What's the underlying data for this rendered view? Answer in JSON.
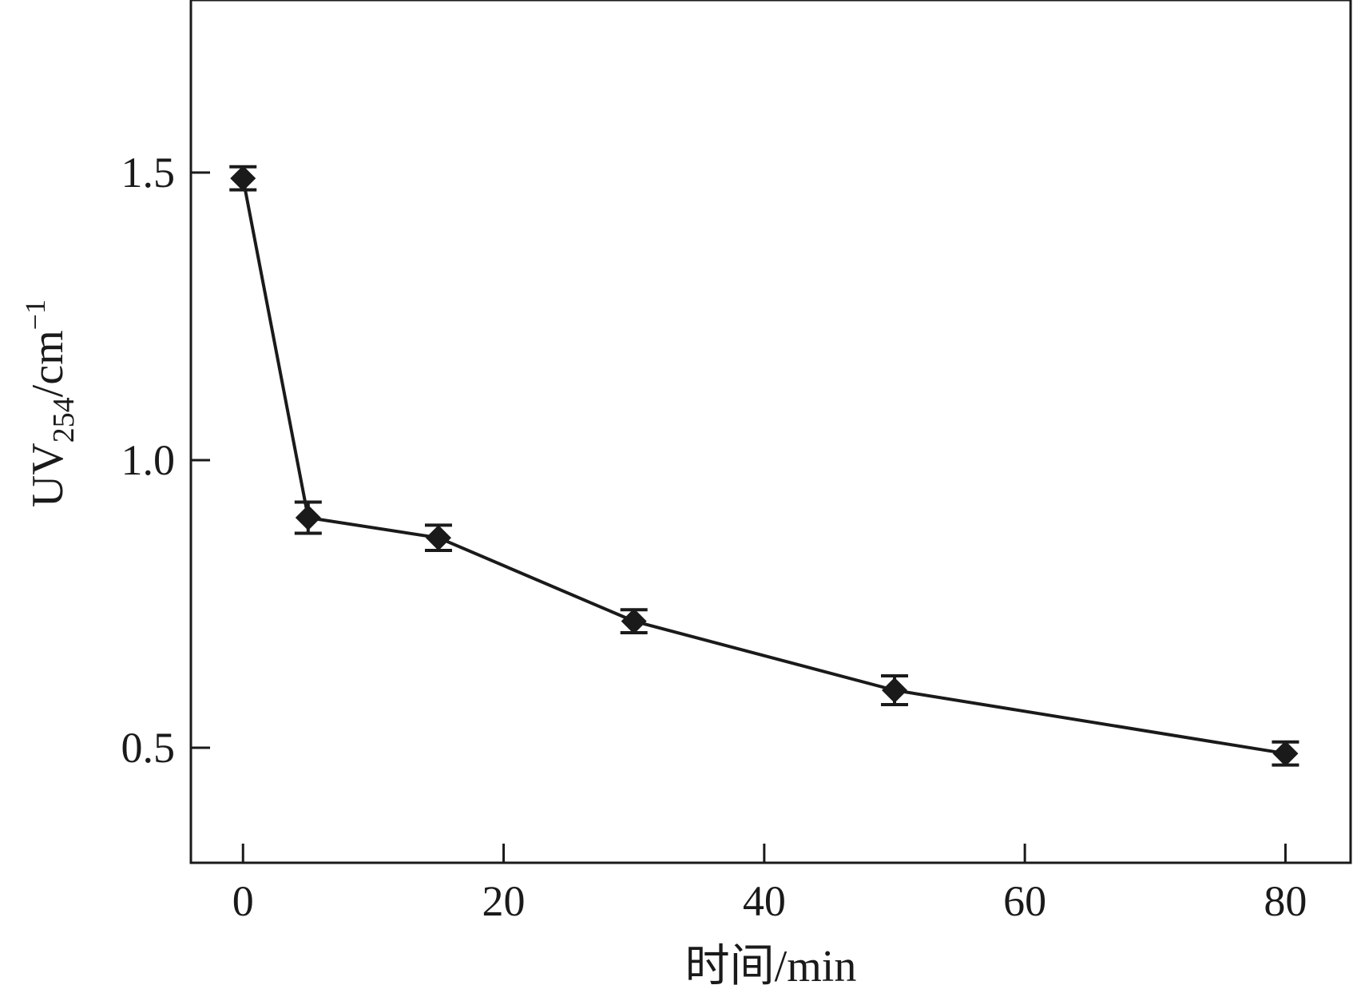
{
  "chart_data": {
    "type": "line",
    "title": "",
    "xlabel": "时间/min",
    "ylabel": {
      "base": "UV",
      "subscript": "254",
      "unit": "/cm",
      "superscript": "−1"
    },
    "xlim": [
      -4,
      85
    ],
    "ylim": [
      0.3,
      1.8
    ],
    "x_ticks": [
      0,
      20,
      40,
      60,
      80
    ],
    "x_tick_labels": [
      "0",
      "20",
      "40",
      "60",
      "80"
    ],
    "y_ticks": [
      0.5,
      1.0,
      1.5
    ],
    "y_tick_labels": [
      "0.5",
      "1.0",
      "1.5"
    ],
    "grid": false,
    "legend": null,
    "marker": "diamond",
    "color": "#1a1a1a",
    "series": [
      {
        "x": [
          0,
          5,
          15,
          30,
          50,
          80
        ],
        "values": [
          1.49,
          0.9,
          0.865,
          0.72,
          0.6,
          0.49
        ],
        "error": [
          0.02,
          0.027,
          0.022,
          0.02,
          0.025,
          0.02
        ]
      }
    ]
  }
}
